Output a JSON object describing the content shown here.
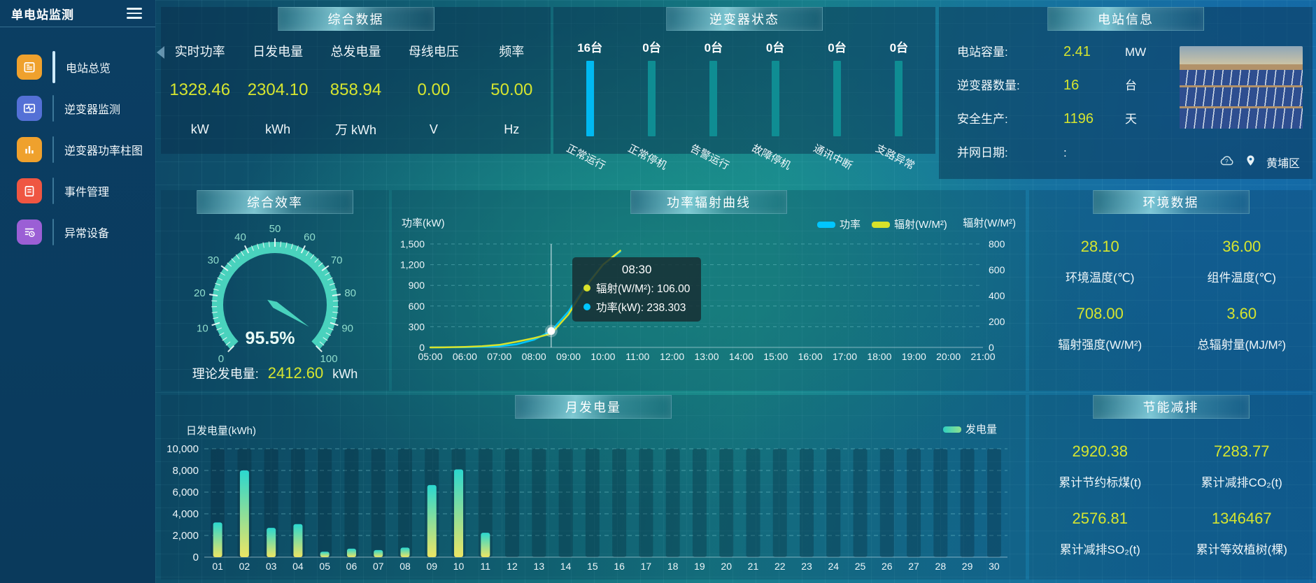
{
  "app": {
    "title": "单电站监测"
  },
  "sidebar": {
    "items": [
      {
        "key": "overview",
        "label": "电站总览",
        "color": "#efa12d",
        "active": true
      },
      {
        "key": "inverter-monitor",
        "label": "逆变器监测",
        "color": "#5470d6",
        "active": false
      },
      {
        "key": "power-bars",
        "label": "逆变器功率柱图",
        "color": "#efa12d",
        "active": false
      },
      {
        "key": "event-manage",
        "label": "事件管理",
        "color": "#ef5642",
        "active": false
      },
      {
        "key": "abnormal-device",
        "label": "异常设备",
        "color": "#9b5fd5",
        "active": false
      }
    ]
  },
  "colors": {
    "value_yellow": "#d6e52f",
    "power_line": "#00c6ff",
    "radiation_line": "#d8e22a",
    "gauge_teal": "#49d2bd",
    "status_highlight": "#00b9f2",
    "status_idle": "#0f8d93"
  },
  "panels": {
    "summary": {
      "title": "综合数据",
      "stats": [
        {
          "label": "实时功率",
          "value": "1328.46",
          "unit": "kW"
        },
        {
          "label": "日发电量",
          "value": "2304.10",
          "unit": "kWh"
        },
        {
          "label": "总发电量",
          "value": "858.94",
          "unit": "万 kWh"
        },
        {
          "label": "母线电压",
          "value": "0.00",
          "unit": "V"
        },
        {
          "label": "频率",
          "value": "50.00",
          "unit": "Hz"
        }
      ]
    },
    "inverter_status": {
      "title": "逆变器状态",
      "items": [
        {
          "count": "16台",
          "label": "正常运行",
          "highlight": true
        },
        {
          "count": "0台",
          "label": "正常停机",
          "highlight": false
        },
        {
          "count": "0台",
          "label": "告警运行",
          "highlight": false
        },
        {
          "count": "0台",
          "label": "故障停机",
          "highlight": false
        },
        {
          "count": "0台",
          "label": "通讯中断",
          "highlight": false
        },
        {
          "count": "0台",
          "label": "支路异常",
          "highlight": false
        }
      ]
    },
    "station_info": {
      "title": "电站信息",
      "rows": [
        {
          "label": "电站容量:",
          "value": "2.41",
          "unit": "MW",
          "plain": false
        },
        {
          "label": "逆变器数量:",
          "value": "16",
          "unit": "台",
          "plain": false
        },
        {
          "label": "安全生产:",
          "value": "1196",
          "unit": "天",
          "plain": false
        },
        {
          "label": "并网日期:",
          "value": ":",
          "unit": "",
          "plain": true
        }
      ],
      "location": "黄埔区"
    },
    "efficiency": {
      "title": "综合效率",
      "value_label": "95.5%",
      "footer_label": "理论发电量:",
      "footer_value": "2412.60",
      "footer_unit": "kWh"
    },
    "power_curve": {
      "title": "功率辐射曲线"
    },
    "environment": {
      "title": "环境数据",
      "stats": [
        {
          "value": "28.10",
          "label": "环境温度(℃)"
        },
        {
          "value": "36.00",
          "label": "组件温度(℃)"
        },
        {
          "value": "708.00",
          "label": "辐射强度(W/M²)"
        },
        {
          "value": "3.60",
          "label": "总辐射量(MJ/M²)"
        }
      ]
    },
    "monthly": {
      "title": "月发电量"
    },
    "saving": {
      "title": "节能减排",
      "stats": [
        {
          "value": "2920.38",
          "label": "累计节约标煤(t)"
        },
        {
          "value": "7283.77",
          "label": "累计减排CO₂(t)"
        },
        {
          "value": "2576.81",
          "label": "累计减排SO₂(t)"
        },
        {
          "value": "1346467",
          "label": "累计等效植树(棵)"
        }
      ]
    }
  },
  "chart_data": [
    {
      "id": "power_radiation_curve",
      "type": "line",
      "title": "功率辐射曲线",
      "x": [
        "05:00",
        "05:30",
        "06:00",
        "06:30",
        "07:00",
        "07:30",
        "08:00",
        "08:30",
        "09:00",
        "09:30",
        "10:00",
        "10:30"
      ],
      "series": [
        {
          "name": "功率",
          "yaxis": "left",
          "color": "#00c6ff",
          "values": [
            0,
            1,
            3,
            8,
            18,
            45,
            110,
            238.303,
            520,
            900,
            1200,
            1390
          ]
        },
        {
          "name": "辐射(W/M²)",
          "yaxis": "right",
          "color": "#d8e22a",
          "values": [
            0,
            1,
            4,
            9,
            20,
            44,
            72,
            106,
            255,
            470,
            640,
            748
          ]
        }
      ],
      "xticks": [
        "05:00",
        "06:00",
        "07:00",
        "08:00",
        "09:00",
        "10:00",
        "11:00",
        "12:00",
        "13:00",
        "14:00",
        "15:00",
        "16:00",
        "17:00",
        "18:00",
        "19:00",
        "20:00",
        "21:00"
      ],
      "ylabel_left": "功率(kW)",
      "ylim_left": [
        0,
        1500
      ],
      "yticks_left": [
        0,
        300,
        600,
        900,
        1200,
        1500
      ],
      "ylabel_right": "辐射(W/M²)",
      "ylim_right": [
        0,
        800
      ],
      "yticks_right": [
        0,
        200,
        400,
        600,
        800
      ],
      "legend": [
        "功率",
        "辐射(W/M²)"
      ],
      "legend_position": "top-right",
      "grid": "dashed-horizontal",
      "tooltip": {
        "title": "08:30",
        "anchor_x": "08:30",
        "rows": [
          {
            "name": "辐射(W/M²)",
            "value": "106.00",
            "color": "#d8e22a"
          },
          {
            "name": "功率(kW)",
            "value": "238.303",
            "color": "#00c6ff"
          }
        ]
      }
    },
    {
      "id": "monthly_generation",
      "type": "bar",
      "title": "月发电量",
      "ylabel": "日发电量(kWh)",
      "ylim": [
        0,
        10000
      ],
      "yticks": [
        0,
        2000,
        4000,
        6000,
        8000,
        10000
      ],
      "categories": [
        "01",
        "02",
        "03",
        "04",
        "05",
        "06",
        "07",
        "08",
        "09",
        "10",
        "11",
        "12",
        "13",
        "14",
        "15",
        "16",
        "17",
        "18",
        "19",
        "20",
        "21",
        "22",
        "23",
        "24",
        "25",
        "26",
        "27",
        "28",
        "29",
        "30"
      ],
      "values": [
        3200,
        8000,
        2700,
        3050,
        500,
        780,
        650,
        880,
        6650,
        8100,
        2250,
        0,
        0,
        0,
        0,
        0,
        0,
        0,
        0,
        0,
        0,
        0,
        0,
        0,
        0,
        0,
        0,
        0,
        0,
        0
      ],
      "legend": "发电量",
      "bar_gradient": [
        "#2bd7cf",
        "#ece564"
      ],
      "shadow_columns": true
    },
    {
      "id": "inverter_status_bars",
      "type": "bar",
      "categories": [
        "正常运行",
        "正常停机",
        "告警运行",
        "故障停机",
        "通讯中断",
        "支路异常"
      ],
      "values": [
        16,
        0,
        0,
        0,
        0,
        0
      ],
      "unit": "台",
      "highlight_color": "#00b9f2",
      "idle_color": "#0f8d93"
    },
    {
      "id": "efficiency_gauge",
      "type": "gauge",
      "min": 0,
      "max": 100,
      "value": 95.5,
      "display": "95.5%",
      "tick_labels": [
        0,
        10,
        20,
        30,
        40,
        50,
        60,
        70,
        80,
        90,
        100
      ],
      "color": "#49d2bd"
    }
  ]
}
